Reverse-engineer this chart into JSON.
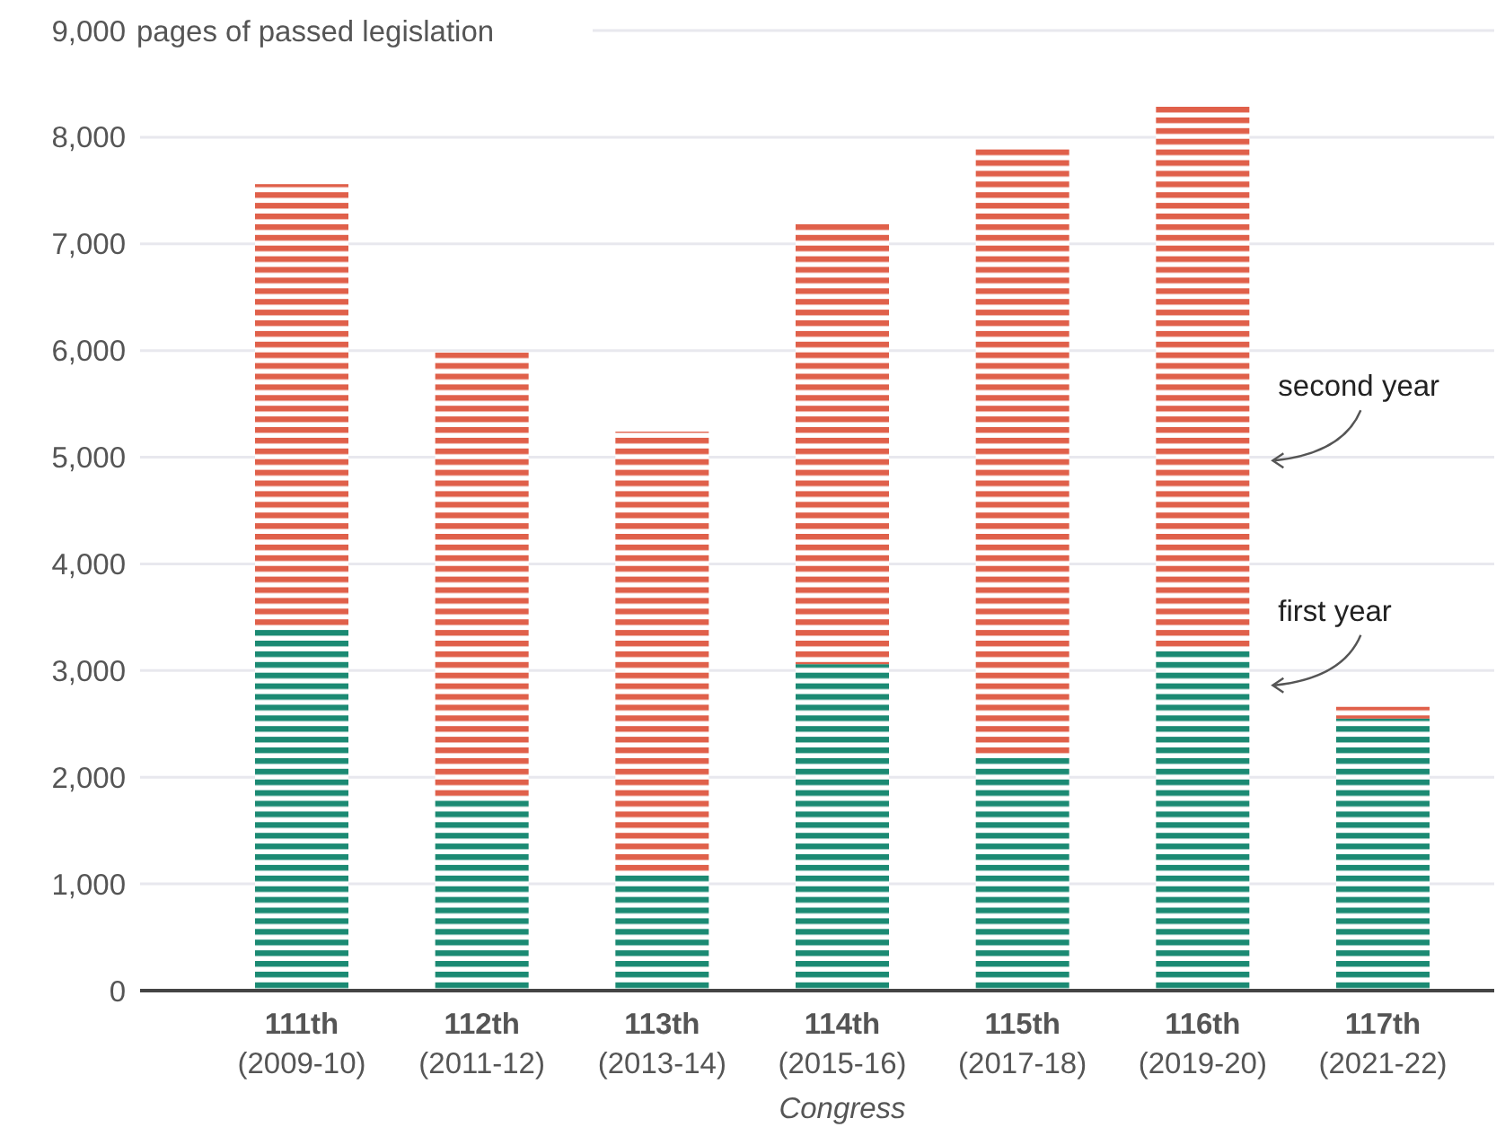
{
  "chart_data": {
    "type": "bar",
    "stacked": true,
    "categories": [
      "111th (2009-10)",
      "112th (2011-12)",
      "113th (2013-14)",
      "114th (2015-16)",
      "115th (2017-18)",
      "116th (2019-20)",
      "117th (2021-22)"
    ],
    "series": [
      {
        "name": "first year",
        "color": "#1b8a73",
        "values": [
          3400,
          1820,
          1090,
          3060,
          2180,
          3180,
          2550
        ]
      },
      {
        "name": "second year",
        "color": "#e0604a",
        "values": [
          4160,
          4160,
          4150,
          4150,
          5740,
          5110,
          110
        ]
      }
    ],
    "xlabel": "Congress",
    "ylim": [
      0,
      9000
    ],
    "yticks": [
      0,
      {
        "value": 1000,
        "label": "1,000"
      },
      {
        "value": 2000,
        "label": "2,000"
      },
      {
        "value": 3000,
        "label": "3,000"
      },
      {
        "value": 4000,
        "label": "4,000"
      },
      {
        "value": 5000,
        "label": "5,000"
      },
      {
        "value": 6000,
        "label": "6,000"
      },
      {
        "value": 7000,
        "label": "7,000"
      },
      {
        "value": 8000,
        "label": "8,000"
      },
      {
        "value": 9000,
        "label": "9,000"
      }
    ],
    "ylabel": "pages of passed legislation",
    "grid": "y",
    "legend": false
  }
}
